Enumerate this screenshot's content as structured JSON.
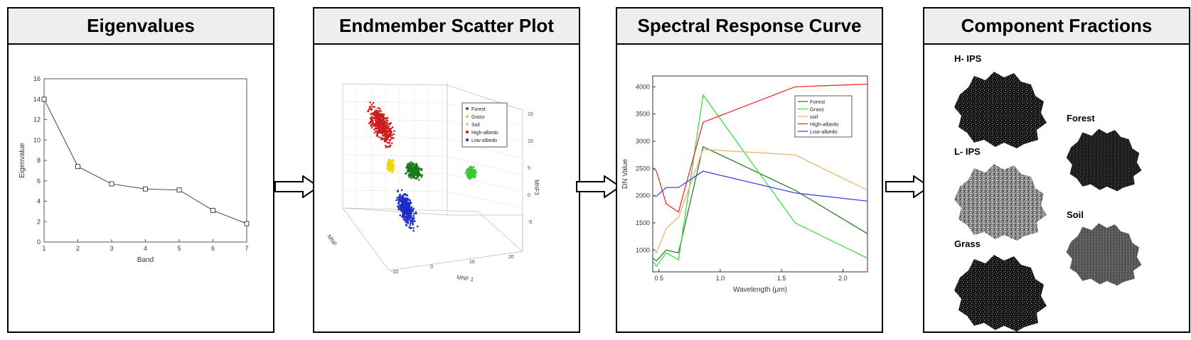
{
  "panels": {
    "eigen": {
      "title": "Eigenvalues"
    },
    "scatter": {
      "title": "Endmember Scatter Plot"
    },
    "spectral": {
      "title": "Spectral Response Curve"
    },
    "fractions": {
      "title": "Component Fractions"
    }
  },
  "chart_data": [
    {
      "type": "line",
      "xlabel": "Band",
      "ylabel": "Eigenvalue",
      "xlim": [
        1,
        7
      ],
      "ylim": [
        0,
        16
      ],
      "x_ticks": [
        "1",
        "2",
        "3",
        "4",
        "5",
        "6",
        "7"
      ],
      "y_ticks": [
        "0",
        "2",
        "4",
        "6",
        "8",
        "10",
        "12",
        "14",
        "16"
      ],
      "series": [
        {
          "x": [
            1,
            2,
            3,
            4,
            5,
            6,
            7
          ],
          "y": [
            14.0,
            7.4,
            5.7,
            5.2,
            5.1,
            3.1,
            1.8
          ]
        }
      ]
    },
    {
      "type": "scatter",
      "legend": [
        "Forest",
        "Grass",
        "Soil",
        "High-albedo",
        "Low-albedo"
      ],
      "colors": [
        "#1a7a1a",
        "#f0d800",
        "#c8c8c8",
        "#cc1c1c",
        "#1c2cc8"
      ],
      "axis_labels": {
        "x": "MNF 1",
        "y": "MNF",
        "z": "MNF3"
      }
    },
    {
      "type": "line",
      "xlabel": "Wavelength (μm)",
      "ylabel": "DN Value",
      "xlim": [
        0.45,
        2.2
      ],
      "ylim": [
        600,
        4200
      ],
      "x_ticks": [
        "0.5",
        "1.0",
        "1.5",
        "2.0"
      ],
      "y_ticks": [
        "1000",
        "1500",
        "2000",
        "2500",
        "3000",
        "3500",
        "4000"
      ],
      "legend_position": "top-right",
      "series": [
        {
          "name": "Forest",
          "color": "#1a7a1a",
          "x": [
            0.45,
            0.48,
            0.56,
            0.66,
            0.86,
            1.61,
            2.2
          ],
          "y": [
            850,
            800,
            1000,
            950,
            2900,
            2100,
            1300
          ]
        },
        {
          "name": "Grass",
          "color": "#33dd33",
          "x": [
            0.45,
            0.48,
            0.56,
            0.66,
            0.86,
            1.61,
            2.2
          ],
          "y": [
            800,
            700,
            950,
            820,
            3850,
            1500,
            850
          ]
        },
        {
          "name": "soil",
          "color": "#e8b060",
          "x": [
            0.45,
            0.48,
            0.56,
            0.66,
            0.86,
            1.61,
            2.2
          ],
          "y": [
            1050,
            950,
            1400,
            1600,
            2850,
            2750,
            2100
          ]
        },
        {
          "name": "High-albedo",
          "color": "#ee2222",
          "x": [
            0.45,
            0.48,
            0.56,
            0.66,
            0.86,
            1.61,
            2.2
          ],
          "y": [
            2500,
            2450,
            1850,
            1700,
            3350,
            4000,
            4050
          ]
        },
        {
          "name": "Low-albedo",
          "color": "#3333ee",
          "x": [
            0.45,
            0.48,
            0.56,
            0.66,
            0.86,
            1.61,
            2.2
          ],
          "y": [
            2000,
            1990,
            2150,
            2150,
            2450,
            2050,
            1900
          ]
        }
      ]
    }
  ],
  "fractions": {
    "labels": {
      "hips": "H- IPS",
      "lips": "L- IPS",
      "grass": "Grass",
      "forest": "Forest",
      "soil": "Soil"
    }
  }
}
